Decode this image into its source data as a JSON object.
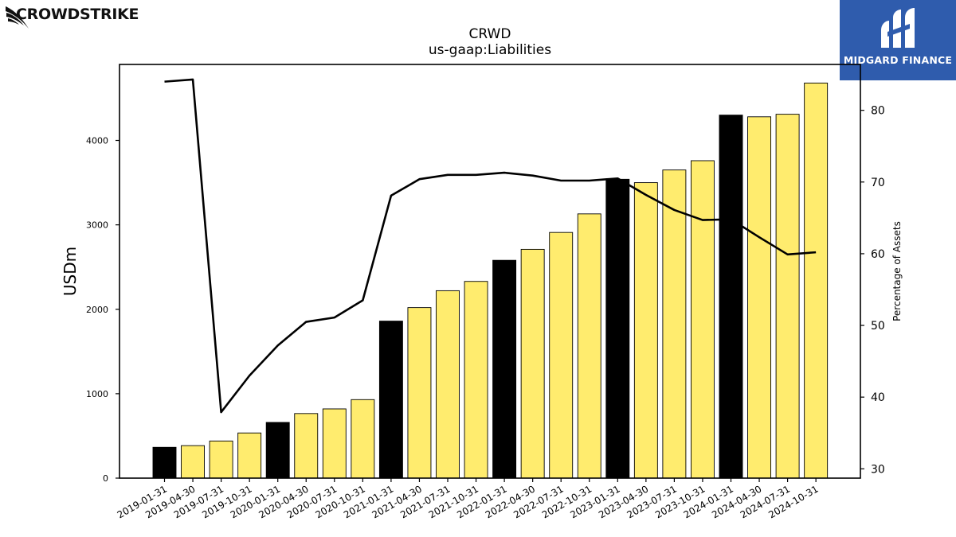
{
  "brands": {
    "left_name": "CROWDSTRIKE",
    "left_icon": "falcon-logo-icon",
    "right_name": "MIDGARD FINANCE",
    "right_icon": "midgard-logo-icon",
    "right_bg": "#2f5cad"
  },
  "chart_data": {
    "type": "bar",
    "title": "CRWD",
    "subtitle": "us-gaap:Liabilities",
    "ylabel": "USDm",
    "y2label": "Percentage of Assets",
    "ylim": [
      0,
      4900
    ],
    "y2lim": [
      28.7,
      86.4
    ],
    "yticks": [
      0,
      1000,
      2000,
      3000,
      4000
    ],
    "y2ticks": [
      30,
      40,
      50,
      60,
      70,
      80
    ],
    "categories": [
      "2019-01-31",
      "2019-04-30",
      "2019-07-31",
      "2019-10-31",
      "2020-01-31",
      "2020-04-30",
      "2020-07-31",
      "2020-10-31",
      "2021-01-31",
      "2021-04-30",
      "2021-07-31",
      "2021-10-31",
      "2022-01-31",
      "2022-04-30",
      "2022-07-31",
      "2022-10-31",
      "2023-01-31",
      "2023-04-30",
      "2023-07-31",
      "2023-10-31",
      "2024-01-31",
      "2024-04-30",
      "2024-07-31",
      "2024-10-31"
    ],
    "bar_values": [
      365,
      385,
      440,
      535,
      660,
      765,
      820,
      930,
      1860,
      2020,
      2220,
      2330,
      2580,
      2710,
      2910,
      3130,
      3540,
      3500,
      3650,
      3760,
      4300,
      4280,
      4310,
      4680
    ],
    "bar_colors": [
      "#000000",
      "#ffec6e",
      "#ffec6e",
      "#ffec6e",
      "#000000",
      "#ffec6e",
      "#ffec6e",
      "#ffec6e",
      "#000000",
      "#ffec6e",
      "#ffec6e",
      "#ffec6e",
      "#000000",
      "#ffec6e",
      "#ffec6e",
      "#ffec6e",
      "#000000",
      "#ffec6e",
      "#ffec6e",
      "#ffec6e",
      "#000000",
      "#ffec6e",
      "#ffec6e",
      "#ffec6e"
    ],
    "line_values": [
      84.0,
      84.3,
      37.9,
      43.0,
      47.2,
      50.5,
      51.1,
      53.5,
      68.1,
      70.4,
      71.0,
      71.0,
      71.3,
      70.9,
      70.2,
      70.2,
      70.5,
      68.2,
      66.1,
      64.7,
      64.8,
      62.3,
      59.9,
      60.2
    ],
    "bar_color_quarter": "#ffec6e",
    "bar_color_fiscal_year": "#000000",
    "line_color": "#000000",
    "grid": false
  }
}
